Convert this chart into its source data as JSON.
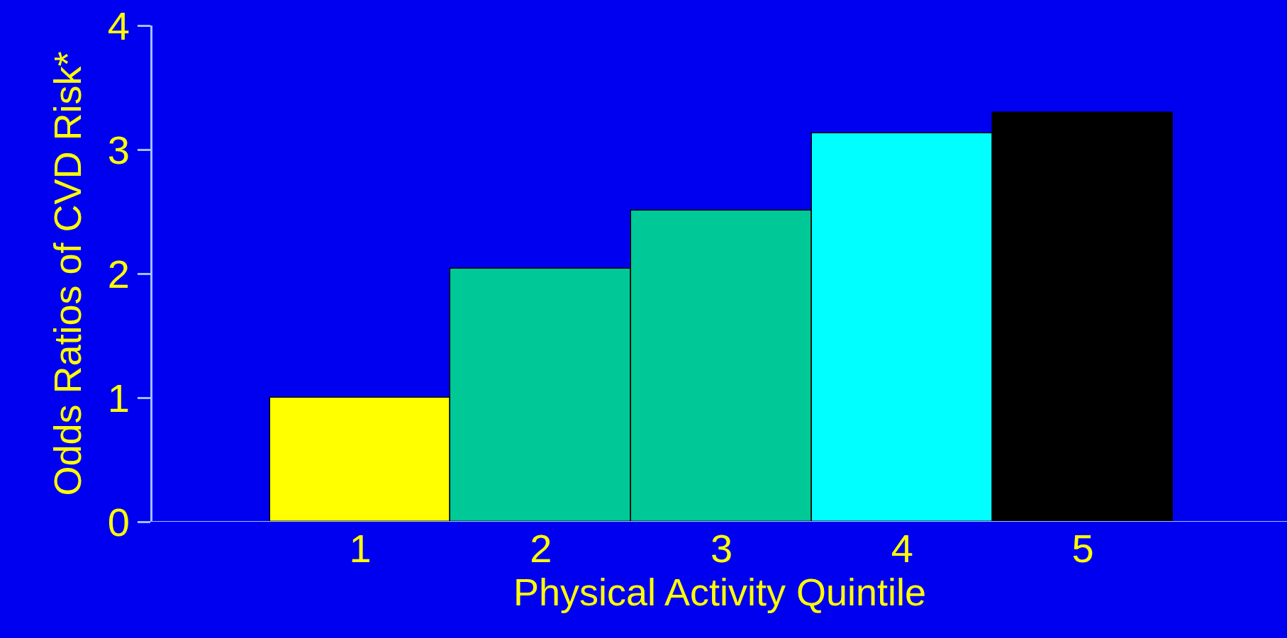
{
  "chart_data": {
    "type": "bar",
    "xlabel": "Physical Activity Quintile",
    "ylabel": "Odds Ratios of CVD Risk*",
    "categories": [
      "1",
      "2",
      "3",
      "4",
      "5"
    ],
    "values": [
      1.0,
      2.04,
      2.51,
      3.13,
      3.3
    ],
    "colors": [
      "#ffff00",
      "#00c896",
      "#00c896",
      "#00ffff",
      "#000000"
    ],
    "ylim": [
      0,
      4
    ],
    "yticks": [
      0,
      1,
      2,
      3,
      4
    ],
    "grid": false
  }
}
